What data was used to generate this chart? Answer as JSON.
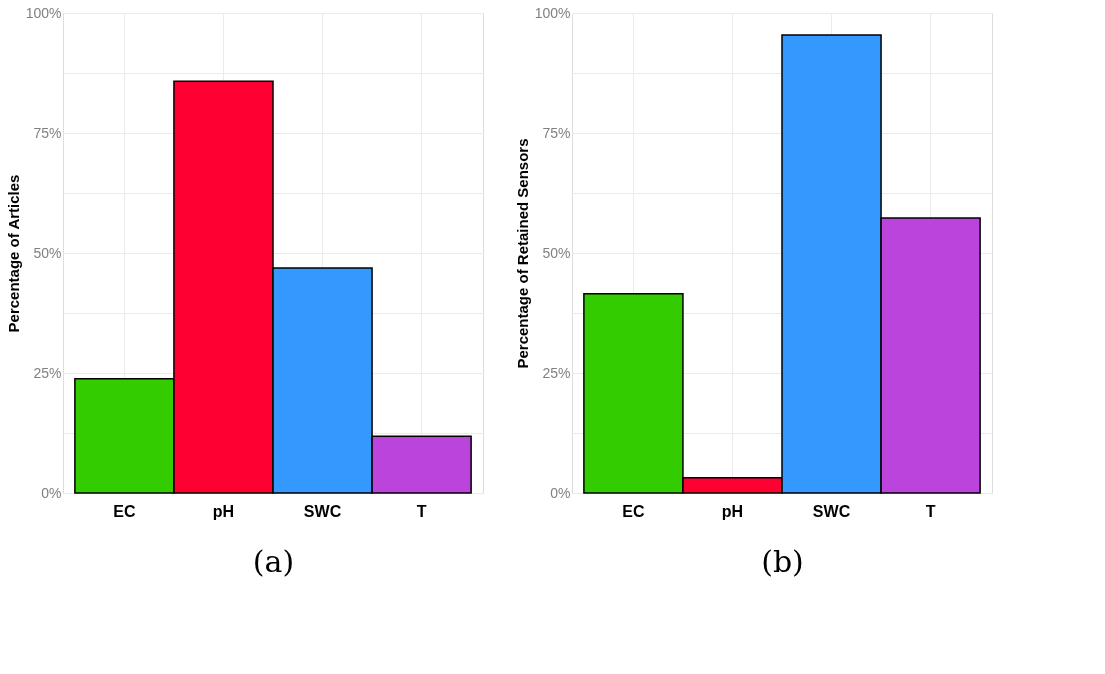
{
  "chart_data": [
    {
      "type": "bar",
      "ylabel": "Percentage of Articles",
      "xlabel": "(a)",
      "categories": [
        "EC",
        "pH",
        "SWC",
        "T"
      ],
      "values": [
        23.8,
        85.8,
        46.9,
        11.8
      ],
      "colors": [
        "#33cc00",
        "#ff0033",
        "#3399ff",
        "#bb44dd"
      ],
      "ylim": [
        0,
        100
      ],
      "yticks": [
        {
          "value": 0,
          "label": "0%"
        },
        {
          "value": 12.5,
          "label": null
        },
        {
          "value": 25,
          "label": "25%"
        },
        {
          "value": 37.5,
          "label": null
        },
        {
          "value": 50,
          "label": "50%"
        },
        {
          "value": 62.5,
          "label": null
        },
        {
          "value": 75,
          "label": "75%"
        },
        {
          "value": 87.5,
          "label": null
        },
        {
          "value": 100,
          "label": "100%"
        }
      ],
      "grid": true,
      "legend": false
    },
    {
      "type": "bar",
      "ylabel": "Percentage of Retained Sensors",
      "xlabel": "(b)",
      "categories": [
        "EC",
        "pH",
        "SWC",
        "T"
      ],
      "values": [
        41.5,
        3.2,
        95.4,
        57.3
      ],
      "colors": [
        "#33cc00",
        "#ff0033",
        "#3399ff",
        "#bb44dd"
      ],
      "ylim": [
        0,
        100
      ],
      "yticks": [
        {
          "value": 0,
          "label": "0%"
        },
        {
          "value": 12.5,
          "label": null
        },
        {
          "value": 25,
          "label": "25%"
        },
        {
          "value": 37.5,
          "label": null
        },
        {
          "value": 50,
          "label": "50%"
        },
        {
          "value": 62.5,
          "label": null
        },
        {
          "value": 75,
          "label": "75%"
        },
        {
          "value": 87.5,
          "label": null
        },
        {
          "value": 100,
          "label": "100%"
        }
      ],
      "grid": true,
      "legend": false
    }
  ]
}
